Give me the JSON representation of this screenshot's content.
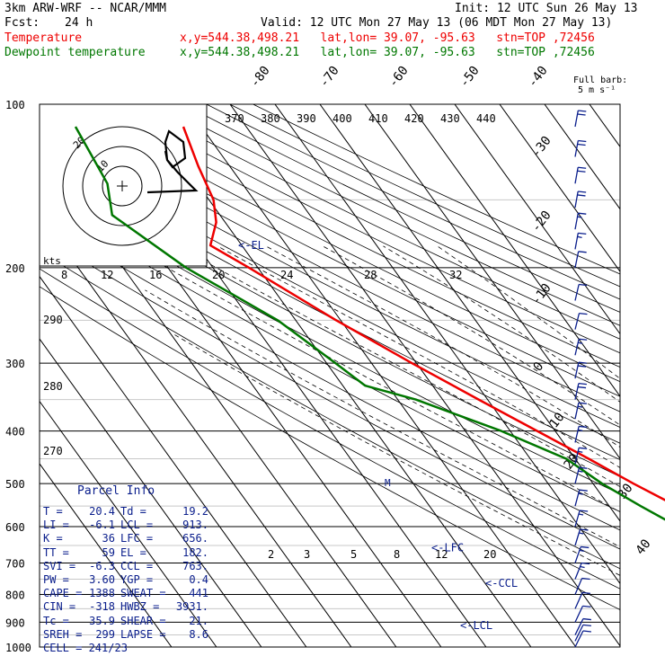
{
  "header": {
    "model": "3km ARW-WRF -- NCAR/MMM",
    "init": "Init: 12 UTC Sun 26 May 13",
    "fcst_label": "Fcst:",
    "fcst_value": "24 h",
    "valid": "Valid: 12 UTC Mon 27 May 13 (06 MDT Mon 27 May 13)",
    "temperature_label": "Temperature",
    "dewpoint_label": "Dewpoint temperature",
    "location_line": "x,y=544.38,498.21   lat,lon= 39.07, -95.63   stn=TOP ,72456",
    "barb_legend_1": "Full barb:",
    "barb_legend_2": "5 m s⁻¹"
  },
  "parcel": {
    "title": "Parcel Info",
    "rows": [
      {
        "k1": "T",
        "v1": "20.4",
        "k2": "Td",
        "v2": "19.2"
      },
      {
        "k1": "LI",
        "v1": "-6.1",
        "k2": "LCL",
        "v2": "913."
      },
      {
        "k1": "K",
        "v1": "36",
        "k2": "LFC",
        "v2": "656."
      },
      {
        "k1": "TT",
        "v1": "59",
        "k2": "EL",
        "v2": "182."
      },
      {
        "k1": "SVI",
        "v1": "-6.3",
        "k2": "CCL",
        "v2": "763."
      },
      {
        "k1": "PW",
        "v1": "3.60",
        "k2": "YGP",
        "v2": "0.4"
      },
      {
        "k1": "CAPE",
        "v1": "1388",
        "k2": "SWEAT",
        "v2": "441"
      },
      {
        "k1": "CIN",
        "v1": "-318",
        "k2": "HWBZ",
        "v2": "3931."
      },
      {
        "k1": "Tc",
        "v1": "35.9",
        "k2": "SHEAR",
        "v2": "21."
      },
      {
        "k1": "SREH",
        "v1": "299",
        "k2": "LAPSE",
        "v2": "8.6"
      }
    ],
    "cell_label": "CELL",
    "cell_value": "241/23"
  },
  "colors": {
    "temperature": "#ee0000",
    "dewpoint": "#007700",
    "barbs": "#0a1e8c",
    "hodograph": "#000000"
  },
  "chart_data": {
    "type": "line",
    "subtype": "skew-T log-P diagram",
    "pressure_levels": [
      100,
      200,
      300,
      400,
      500,
      600,
      700,
      800,
      900,
      1000
    ],
    "isotherm_labels": [
      "-80",
      "-70",
      "-60",
      "-50",
      "-40",
      "-30",
      "-20",
      "-10",
      "0",
      "10",
      "20",
      "30",
      "40"
    ],
    "theta_labels": [
      "370",
      "380",
      "390",
      "400",
      "410",
      "420",
      "430",
      "440"
    ],
    "theta_left_labels": [
      "290",
      "280",
      "270"
    ],
    "mixing_ratio_labels_upper": [
      "8",
      "12",
      "16",
      "20",
      "24",
      "28",
      "32"
    ],
    "mixing_ratio_labels_lower": [
      "2",
      "3",
      "5",
      "8",
      "12",
      "20"
    ],
    "level_markers": [
      {
        "label": "<-EL",
        "pressure": 182
      },
      {
        "label": "<-LFC",
        "pressure": 656
      },
      {
        "label": "<-CCL",
        "pressure": 763
      },
      {
        "label": "<-LCL",
        "pressure": 913
      }
    ],
    "series": [
      {
        "name": "Temperature",
        "points": [
          {
            "p": 110,
            "t": -54
          },
          {
            "p": 130,
            "t": -57
          },
          {
            "p": 150,
            "t": -59
          },
          {
            "p": 165,
            "t": -62
          },
          {
            "p": 175,
            "t": -65
          },
          {
            "p": 182,
            "t": -67
          },
          {
            "p": 200,
            "t": -62
          },
          {
            "p": 250,
            "t": -51
          },
          {
            "p": 300,
            "t": -41
          },
          {
            "p": 350,
            "t": -32
          },
          {
            "p": 400,
            "t": -24
          },
          {
            "p": 450,
            "t": -17
          },
          {
            "p": 500,
            "t": -11
          },
          {
            "p": 550,
            "t": -5
          },
          {
            "p": 600,
            "t": 0
          },
          {
            "p": 650,
            "t": 5
          },
          {
            "p": 700,
            "t": 9
          },
          {
            "p": 750,
            "t": 13
          },
          {
            "p": 800,
            "t": 16
          },
          {
            "p": 850,
            "t": 20
          },
          {
            "p": 880,
            "t": 18
          },
          {
            "p": 900,
            "t": 14
          },
          {
            "p": 925,
            "t": 16
          },
          {
            "p": 950,
            "t": 18
          },
          {
            "p": 975,
            "t": 19.5
          },
          {
            "p": 990,
            "t": 20.4
          }
        ]
      },
      {
        "name": "Dewpoint temperature",
        "points": [
          {
            "p": 110,
            "t": -78
          },
          {
            "p": 140,
            "t": -80
          },
          {
            "p": 160,
            "t": -84
          },
          {
            "p": 200,
            "t": -76
          },
          {
            "p": 250,
            "t": -64
          },
          {
            "p": 300,
            "t": -58
          },
          {
            "p": 330,
            "t": -55
          },
          {
            "p": 350,
            "t": -46
          },
          {
            "p": 400,
            "t": -32
          },
          {
            "p": 450,
            "t": -22
          },
          {
            "p": 500,
            "t": -18
          },
          {
            "p": 550,
            "t": -13
          },
          {
            "p": 600,
            "t": -8
          },
          {
            "p": 650,
            "t": -1
          },
          {
            "p": 700,
            "t": 5
          },
          {
            "p": 750,
            "t": 9
          },
          {
            "p": 800,
            "t": 13
          },
          {
            "p": 850,
            "t": 16
          },
          {
            "p": 900,
            "t": 17.5
          },
          {
            "p": 950,
            "t": 18.5
          },
          {
            "p": 990,
            "t": 19.2
          }
        ]
      }
    ],
    "hodograph": {
      "labels": [
        "20",
        "10",
        "kts"
      ],
      "rings_kts": [
        10,
        20,
        30
      ]
    },
    "wind_barbs": [
      {
        "p": 110,
        "dir": 250,
        "spd": 20
      },
      {
        "p": 125,
        "dir": 250,
        "spd": 20
      },
      {
        "p": 140,
        "dir": 255,
        "spd": 20
      },
      {
        "p": 155,
        "dir": 255,
        "spd": 20
      },
      {
        "p": 170,
        "dir": 250,
        "spd": 15
      },
      {
        "p": 185,
        "dir": 250,
        "spd": 15
      },
      {
        "p": 200,
        "dir": 240,
        "spd": 10
      },
      {
        "p": 230,
        "dir": 230,
        "spd": 10
      },
      {
        "p": 260,
        "dir": 225,
        "spd": 10
      },
      {
        "p": 290,
        "dir": 230,
        "spd": 15
      },
      {
        "p": 320,
        "dir": 235,
        "spd": 20
      },
      {
        "p": 350,
        "dir": 235,
        "spd": 20
      },
      {
        "p": 380,
        "dir": 235,
        "spd": 15
      },
      {
        "p": 420,
        "dir": 230,
        "spd": 15
      },
      {
        "p": 460,
        "dir": 230,
        "spd": 15
      },
      {
        "p": 500,
        "dir": 225,
        "spd": 15
      },
      {
        "p": 550,
        "dir": 220,
        "spd": 15
      },
      {
        "p": 600,
        "dir": 215,
        "spd": 15
      },
      {
        "p": 650,
        "dir": 210,
        "spd": 15
      },
      {
        "p": 700,
        "dir": 200,
        "spd": 15
      },
      {
        "p": 750,
        "dir": 190,
        "spd": 15
      },
      {
        "p": 800,
        "dir": 185,
        "spd": 10
      },
      {
        "p": 850,
        "dir": 180,
        "spd": 10
      },
      {
        "p": 900,
        "dir": 175,
        "spd": 10
      },
      {
        "p": 950,
        "dir": 170,
        "spd": 10
      },
      {
        "p": 975,
        "dir": 170,
        "spd": 10
      },
      {
        "p": 1000,
        "dir": 170,
        "spd": 10
      }
    ]
  }
}
